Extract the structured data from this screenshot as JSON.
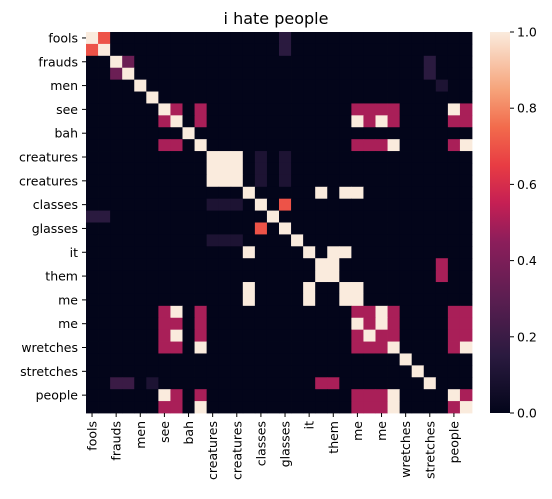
{
  "chart_data": {
    "type": "heatmap",
    "title": "i hate people",
    "row_labels": [
      "fools",
      "fools",
      "frauds",
      "frauds",
      "men",
      "men",
      "see",
      "see",
      "bah",
      "bah",
      "creatures",
      "creatures",
      "creatures",
      "creatures",
      "classes",
      "classes",
      "glasses",
      "glasses",
      "it",
      "it",
      "them",
      "them",
      "me",
      "me",
      "me",
      "me",
      "wretches",
      "wretches",
      "stretches",
      "stretches",
      "people",
      "people"
    ],
    "col_labels": [
      "fools",
      "fools",
      "frauds",
      "frauds",
      "men",
      "men",
      "see",
      "see",
      "bah",
      "bah",
      "creatures",
      "creatures",
      "creatures",
      "creatures",
      "classes",
      "classes",
      "glasses",
      "glasses",
      "it",
      "it",
      "them",
      "them",
      "me",
      "me",
      "me",
      "me",
      "wretches",
      "wretches",
      "stretches",
      "stretches",
      "people",
      "people"
    ],
    "shown_tick_labels": [
      "fools",
      "frauds",
      "men",
      "see",
      "bah",
      "creatures",
      "creatures",
      "classes",
      "glasses",
      "it",
      "them",
      "me",
      "me",
      "wretches",
      "stretches",
      "people"
    ],
    "matrix": [
      [
        1,
        0.7,
        0,
        0,
        0,
        0,
        0,
        0,
        0,
        0,
        0,
        0,
        0,
        0,
        0,
        0,
        0.15,
        0,
        0,
        0,
        0,
        0,
        0,
        0,
        0,
        0,
        0,
        0,
        0,
        0,
        0,
        0
      ],
      [
        0.7,
        1,
        0,
        0,
        0,
        0,
        0,
        0,
        0,
        0,
        0,
        0,
        0,
        0,
        0,
        0,
        0.15,
        0,
        0,
        0,
        0,
        0,
        0,
        0,
        0,
        0,
        0,
        0,
        0,
        0,
        0,
        0
      ],
      [
        0,
        0,
        1,
        0.35,
        0,
        0,
        0,
        0,
        0,
        0,
        0,
        0,
        0,
        0,
        0,
        0,
        0,
        0,
        0,
        0,
        0,
        0,
        0,
        0,
        0,
        0,
        0,
        0,
        0.15,
        0,
        0,
        0
      ],
      [
        0,
        0,
        0.35,
        1,
        0,
        0,
        0,
        0,
        0,
        0,
        0,
        0,
        0,
        0,
        0,
        0,
        0,
        0,
        0,
        0,
        0,
        0,
        0,
        0,
        0,
        0,
        0,
        0,
        0.15,
        0,
        0,
        0
      ],
      [
        0,
        0,
        0,
        0,
        1,
        0,
        0,
        0,
        0,
        0,
        0,
        0,
        0,
        0,
        0,
        0,
        0,
        0,
        0,
        0,
        0,
        0,
        0,
        0,
        0,
        0,
        0,
        0,
        0,
        0.1,
        0,
        0
      ],
      [
        0,
        0,
        0,
        0,
        0,
        1,
        0,
        0,
        0,
        0,
        0,
        0,
        0,
        0,
        0,
        0,
        0,
        0,
        0,
        0,
        0,
        0,
        0,
        0,
        0,
        0,
        0,
        0,
        0,
        0,
        0,
        0
      ],
      [
        0,
        0,
        0,
        0,
        0,
        0,
        1,
        0.5,
        0,
        0.5,
        0,
        0,
        0,
        0,
        0,
        0,
        0,
        0,
        0,
        0,
        0,
        0,
        0.5,
        0.5,
        0.5,
        0.5,
        0,
        0,
        0,
        0,
        1,
        0.5
      ],
      [
        0,
        0,
        0,
        0,
        0,
        0,
        0.5,
        1,
        0,
        0.5,
        0,
        0,
        0,
        0,
        0,
        0,
        0,
        0,
        0,
        0,
        0,
        0,
        1,
        0.5,
        1,
        0.5,
        0,
        0,
        0,
        0,
        0.5,
        0.5
      ],
      [
        0,
        0,
        0,
        0,
        0,
        0,
        0,
        0,
        1,
        0,
        0,
        0,
        0,
        0,
        0,
        0,
        0,
        0,
        0,
        0,
        0,
        0,
        0,
        0,
        0,
        0,
        0,
        0,
        0,
        0,
        0,
        0
      ],
      [
        0,
        0,
        0,
        0,
        0,
        0,
        0.5,
        0.5,
        0,
        1,
        0,
        0,
        0,
        0,
        0,
        0,
        0,
        0,
        0,
        0,
        0,
        0,
        0.5,
        0.5,
        0.5,
        1,
        0,
        0,
        0,
        0,
        0.5,
        1
      ],
      [
        0,
        0,
        0,
        0,
        0,
        0,
        0,
        0,
        0,
        0,
        1,
        1,
        1,
        0,
        0.1,
        0,
        0.1,
        0,
        0,
        0,
        0,
        0,
        0,
        0,
        0,
        0,
        0,
        0,
        0,
        0,
        0,
        0
      ],
      [
        0,
        0,
        0,
        0,
        0,
        0,
        0,
        0,
        0,
        0,
        1,
        1,
        1,
        0,
        0.1,
        0,
        0.1,
        0,
        0,
        0,
        0,
        0,
        0,
        0,
        0,
        0,
        0,
        0,
        0,
        0,
        0,
        0
      ],
      [
        0,
        0,
        0,
        0,
        0,
        0,
        0,
        0,
        0,
        0,
        1,
        1,
        1,
        0,
        0.1,
        0,
        0.1,
        0,
        0,
        0,
        0,
        0,
        0,
        0,
        0,
        0,
        0,
        0,
        0,
        0,
        0,
        0
      ],
      [
        0,
        0,
        0,
        0,
        0,
        0,
        0,
        0,
        0,
        0,
        0,
        0,
        0,
        1,
        0,
        0,
        0,
        0,
        0,
        1,
        0,
        1,
        1,
        0,
        0,
        0,
        0,
        0,
        0,
        0,
        0,
        0
      ],
      [
        0,
        0,
        0,
        0,
        0,
        0,
        0,
        0,
        0,
        0,
        0.1,
        0.1,
        0.1,
        0,
        1,
        0,
        0.7,
        0,
        0,
        0,
        0,
        0,
        0,
        0,
        0,
        0,
        0,
        0,
        0,
        0,
        0,
        0
      ],
      [
        0.15,
        0.15,
        0,
        0,
        0,
        0,
        0,
        0,
        0,
        0,
        0,
        0,
        0,
        0,
        0,
        1,
        0,
        0,
        0,
        0,
        0,
        0,
        0,
        0,
        0,
        0,
        0,
        0,
        0,
        0,
        0,
        0
      ],
      [
        0,
        0,
        0,
        0,
        0,
        0,
        0,
        0,
        0,
        0,
        0,
        0,
        0,
        0,
        0.7,
        0,
        1,
        0,
        0,
        0,
        0,
        0,
        0,
        0,
        0,
        0,
        0,
        0,
        0,
        0,
        0,
        0
      ],
      [
        0,
        0,
        0,
        0,
        0,
        0,
        0,
        0,
        0,
        0,
        0.1,
        0.1,
        0.1,
        0,
        0,
        0,
        0,
        1,
        0,
        0,
        0,
        0,
        0,
        0,
        0,
        0,
        0,
        0,
        0,
        0,
        0,
        0
      ],
      [
        0,
        0,
        0,
        0,
        0,
        0,
        0,
        0,
        0,
        0,
        0,
        0,
        0,
        1,
        0,
        0,
        0,
        0,
        1,
        0,
        1,
        1,
        0,
        0,
        0,
        0,
        0,
        0,
        0,
        0,
        0,
        0
      ],
      [
        0,
        0,
        0,
        0,
        0,
        0,
        0,
        0,
        0,
        0,
        0,
        0,
        0,
        0,
        0,
        0,
        0,
        0,
        0,
        1,
        1,
        0,
        0,
        0,
        0,
        0,
        0,
        0,
        0,
        0.5,
        0,
        0
      ],
      [
        0,
        0,
        0,
        0,
        0,
        0,
        0,
        0,
        0,
        0,
        0,
        0,
        0,
        0,
        0,
        0,
        0,
        0,
        0,
        1,
        1,
        0,
        0,
        0,
        0,
        0,
        0,
        0,
        0,
        0.5,
        0,
        0
      ],
      [
        0,
        0,
        0,
        0,
        0,
        0,
        0,
        0,
        0,
        0,
        0,
        0,
        0,
        1,
        0,
        0,
        0,
        0,
        1,
        0,
        0,
        1,
        1,
        0,
        0,
        0,
        0,
        0,
        0,
        0,
        0,
        0
      ],
      [
        0,
        0,
        0,
        0,
        0,
        0,
        0,
        0,
        0,
        0,
        0,
        0,
        0,
        1,
        0,
        0,
        0,
        0,
        1,
        0,
        0,
        1,
        1,
        0,
        0,
        0,
        0,
        0,
        0,
        0,
        0,
        0
      ],
      [
        0,
        0,
        0,
        0,
        0,
        0,
        0.5,
        1,
        0,
        0.5,
        0,
        0,
        0,
        0,
        0,
        0,
        0,
        0,
        0,
        0,
        0,
        0,
        0.5,
        0.5,
        1,
        0.5,
        0,
        0,
        0,
        0,
        0.5,
        0.5
      ],
      [
        0,
        0,
        0,
        0,
        0,
        0,
        0.5,
        0.5,
        0,
        0.5,
        0,
        0,
        0,
        0,
        0,
        0,
        0,
        0,
        0,
        0,
        0,
        0,
        1,
        0.5,
        1,
        0.5,
        0,
        0,
        0,
        0,
        0.5,
        0.5
      ],
      [
        0,
        0,
        0,
        0,
        0,
        0,
        0.5,
        1,
        0,
        0.5,
        0,
        0,
        0,
        0,
        0,
        0,
        0,
        0,
        0,
        0,
        0,
        0,
        0.5,
        1,
        0.5,
        0.5,
        0,
        0,
        0,
        0,
        0.5,
        0.5
      ],
      [
        0,
        0,
        0,
        0,
        0,
        0,
        0.5,
        0.5,
        0,
        1,
        0,
        0,
        0,
        0,
        0,
        0,
        0,
        0,
        0,
        0,
        0,
        0,
        0.5,
        0.5,
        0.5,
        1,
        0,
        0,
        0,
        0,
        0.5,
        1
      ],
      [
        0,
        0,
        0,
        0,
        0,
        0,
        0,
        0,
        0,
        0,
        0,
        0,
        0,
        0,
        0,
        0,
        0,
        0,
        0,
        0,
        0,
        0,
        0,
        0,
        0,
        0,
        1,
        0,
        0,
        0,
        0,
        0
      ],
      [
        0,
        0,
        0,
        0,
        0,
        0,
        0,
        0,
        0,
        0,
        0,
        0,
        0,
        0,
        0,
        0,
        0,
        0,
        0,
        0,
        0,
        0,
        0,
        0,
        0,
        0,
        0,
        1,
        0,
        0,
        0,
        0
      ],
      [
        0,
        0,
        0.2,
        0.2,
        0,
        0.1,
        0,
        0,
        0,
        0,
        0,
        0,
        0,
        0,
        0,
        0,
        0,
        0,
        0,
        0.5,
        0.5,
        0,
        0,
        0,
        0,
        0,
        0,
        0,
        1,
        0,
        0,
        0
      ],
      [
        0,
        0,
        0,
        0,
        0,
        0,
        1,
        0.5,
        0,
        0.5,
        0,
        0,
        0,
        0,
        0,
        0,
        0,
        0,
        0,
        0,
        0,
        0,
        0.5,
        0.5,
        0.5,
        1,
        0,
        0,
        0,
        0,
        1,
        0.5
      ],
      [
        0,
        0,
        0,
        0,
        0,
        0,
        0.5,
        0.5,
        0,
        1,
        0,
        0,
        0,
        0,
        0,
        0,
        0,
        0,
        0,
        0,
        0,
        0,
        0.5,
        0.5,
        0.5,
        1,
        0,
        0,
        0,
        0,
        0.5,
        1
      ]
    ],
    "vmin": 0,
    "vmax": 1,
    "colormap": "rocket",
    "colorbar_ticks": [
      "0.0",
      "0.2",
      "0.4",
      "0.6",
      "0.8",
      "1.0"
    ],
    "colorbar_values": [
      0,
      0.2,
      0.4,
      0.6,
      0.8,
      1.0
    ]
  }
}
